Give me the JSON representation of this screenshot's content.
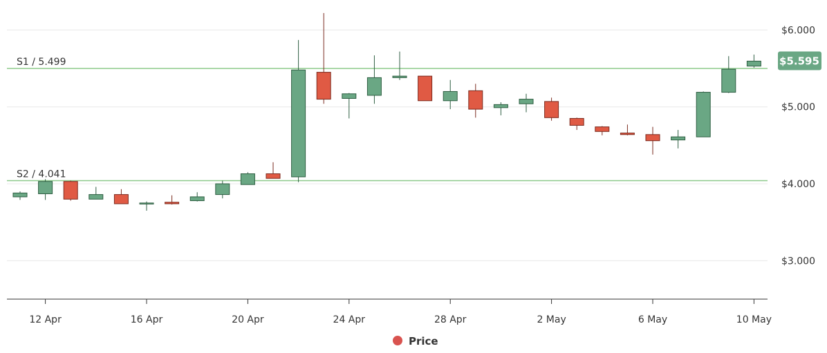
{
  "chart_data": {
    "type": "candlestick",
    "y_axis": {
      "min": 2.5,
      "max": 6.3,
      "ticks": [
        3.0,
        4.0,
        5.0,
        6.0
      ],
      "tick_labels": [
        "$3.000",
        "$4.000",
        "$5.000",
        "$6.000"
      ],
      "position": "right"
    },
    "x_axis": {
      "start": "2024-04-11",
      "end": "2024-05-10",
      "ticks": [
        "2024-04-12",
        "2024-04-16",
        "2024-04-20",
        "2024-04-24",
        "2024-04-28",
        "2024-05-02",
        "2024-05-06",
        "2024-05-10"
      ],
      "tick_labels": [
        "12 Apr",
        "16 Apr",
        "20 Apr",
        "24 Apr",
        "28 Apr",
        "2 May",
        "6 May",
        "10 May"
      ]
    },
    "grid": true,
    "legend": {
      "position": "bottom-center",
      "label": "Price",
      "color": "#d9534f"
    },
    "colors": {
      "up": "#6aa784",
      "up_border": "#2e5e42",
      "down": "#e05a44",
      "down_border": "#7a2a1e",
      "level_line": "#8cc98a",
      "badge": "#6aa784"
    },
    "last_price_label": "$5.595",
    "last_price": 5.595,
    "levels": [
      {
        "label": "S1 / 5.499",
        "value": 5.499
      },
      {
        "label": "S2 / 4.041",
        "value": 4.041
      }
    ],
    "candles": [
      {
        "date": "2024-04-11",
        "open": 3.83,
        "high": 3.9,
        "low": 3.79,
        "close": 3.88
      },
      {
        "date": "2024-04-12",
        "open": 3.87,
        "high": 4.06,
        "low": 3.79,
        "close": 4.03
      },
      {
        "date": "2024-04-13",
        "open": 4.03,
        "high": 4.04,
        "low": 3.78,
        "close": 3.8
      },
      {
        "date": "2024-04-14",
        "open": 3.8,
        "high": 3.96,
        "low": 3.8,
        "close": 3.86
      },
      {
        "date": "2024-04-15",
        "open": 3.86,
        "high": 3.93,
        "low": 3.74,
        "close": 3.74
      },
      {
        "date": "2024-04-16",
        "open": 3.74,
        "high": 3.77,
        "low": 3.65,
        "close": 3.75
      },
      {
        "date": "2024-04-17",
        "open": 3.76,
        "high": 3.85,
        "low": 3.73,
        "close": 3.74
      },
      {
        "date": "2024-04-18",
        "open": 3.78,
        "high": 3.89,
        "low": 3.77,
        "close": 3.83
      },
      {
        "date": "2024-04-19",
        "open": 3.86,
        "high": 4.04,
        "low": 3.81,
        "close": 4.0
      },
      {
        "date": "2024-04-20",
        "open": 3.99,
        "high": 4.15,
        "low": 3.99,
        "close": 4.13
      },
      {
        "date": "2024-04-21",
        "open": 4.13,
        "high": 4.28,
        "low": 4.07,
        "close": 4.07
      },
      {
        "date": "2024-04-22",
        "open": 4.09,
        "high": 5.87,
        "low": 4.02,
        "close": 5.48
      },
      {
        "date": "2024-04-23",
        "open": 5.45,
        "high": 6.22,
        "low": 5.04,
        "close": 5.1
      },
      {
        "date": "2024-04-24",
        "open": 5.11,
        "high": 5.18,
        "low": 4.85,
        "close": 5.17
      },
      {
        "date": "2024-04-25",
        "open": 5.15,
        "high": 5.67,
        "low": 5.04,
        "close": 5.38
      },
      {
        "date": "2024-04-26",
        "open": 5.38,
        "high": 5.72,
        "low": 5.35,
        "close": 5.4
      },
      {
        "date": "2024-04-27",
        "open": 5.4,
        "high": 5.4,
        "low": 5.08,
        "close": 5.08
      },
      {
        "date": "2024-04-28",
        "open": 5.08,
        "high": 5.35,
        "low": 4.97,
        "close": 5.2
      },
      {
        "date": "2024-04-29",
        "open": 5.21,
        "high": 5.3,
        "low": 4.86,
        "close": 4.97
      },
      {
        "date": "2024-04-30",
        "open": 4.99,
        "high": 5.06,
        "low": 4.89,
        "close": 5.03
      },
      {
        "date": "2024-05-01",
        "open": 5.04,
        "high": 5.17,
        "low": 4.93,
        "close": 5.1
      },
      {
        "date": "2024-05-02",
        "open": 5.07,
        "high": 5.12,
        "low": 4.82,
        "close": 4.86
      },
      {
        "date": "2024-05-03",
        "open": 4.85,
        "high": 4.86,
        "low": 4.7,
        "close": 4.76
      },
      {
        "date": "2024-05-04",
        "open": 4.74,
        "high": 4.75,
        "low": 4.63,
        "close": 4.68
      },
      {
        "date": "2024-05-05",
        "open": 4.66,
        "high": 4.77,
        "low": 4.63,
        "close": 4.64
      },
      {
        "date": "2024-05-06",
        "open": 4.64,
        "high": 4.74,
        "low": 4.38,
        "close": 4.56
      },
      {
        "date": "2024-05-07",
        "open": 4.57,
        "high": 4.7,
        "low": 4.46,
        "close": 4.61
      },
      {
        "date": "2024-05-08",
        "open": 4.61,
        "high": 5.2,
        "low": 4.61,
        "close": 5.19
      },
      {
        "date": "2024-05-09",
        "open": 5.19,
        "high": 5.66,
        "low": 5.18,
        "close": 5.49
      },
      {
        "date": "2024-05-10",
        "open": 5.53,
        "high": 5.68,
        "low": 5.51,
        "close": 5.595
      }
    ]
  }
}
